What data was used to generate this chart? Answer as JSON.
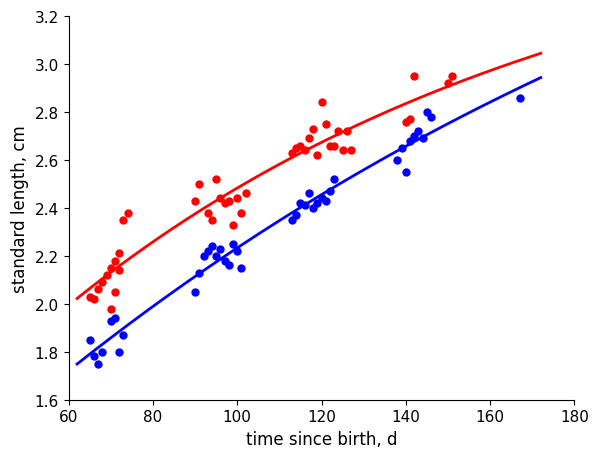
{
  "red_x": [
    65,
    66,
    67,
    68,
    69,
    70,
    70,
    71,
    71,
    72,
    72,
    73,
    74,
    90,
    91,
    93,
    94,
    95,
    96,
    97,
    98,
    99,
    100,
    101,
    102,
    113,
    114,
    115,
    116,
    117,
    118,
    119,
    120,
    121,
    122,
    123,
    124,
    125,
    126,
    127,
    140,
    141,
    142,
    150,
    151
  ],
  "red_y": [
    2.03,
    2.02,
    2.06,
    2.09,
    2.12,
    1.98,
    2.15,
    2.18,
    2.05,
    2.21,
    2.14,
    2.35,
    2.38,
    2.43,
    2.5,
    2.38,
    2.35,
    2.52,
    2.44,
    2.42,
    2.43,
    2.33,
    2.44,
    2.38,
    2.46,
    2.63,
    2.65,
    2.66,
    2.64,
    2.69,
    2.73,
    2.62,
    2.84,
    2.75,
    2.66,
    2.66,
    2.72,
    2.64,
    2.72,
    2.64,
    2.76,
    2.77,
    2.95,
    2.92,
    2.95
  ],
  "blue_x": [
    65,
    66,
    67,
    68,
    70,
    71,
    72,
    73,
    90,
    91,
    92,
    93,
    94,
    95,
    96,
    97,
    98,
    99,
    100,
    101,
    113,
    114,
    115,
    116,
    117,
    118,
    119,
    120,
    121,
    122,
    123,
    138,
    139,
    140,
    141,
    142,
    143,
    144,
    145,
    146,
    167
  ],
  "blue_y": [
    1.85,
    1.78,
    1.75,
    1.8,
    1.93,
    1.94,
    1.8,
    1.87,
    2.05,
    2.13,
    2.2,
    2.22,
    2.24,
    2.2,
    2.23,
    2.18,
    2.16,
    2.25,
    2.22,
    2.15,
    2.35,
    2.37,
    2.42,
    2.41,
    2.46,
    2.4,
    2.42,
    2.44,
    2.43,
    2.47,
    2.52,
    2.6,
    2.65,
    2.55,
    2.68,
    2.7,
    2.72,
    2.69,
    2.8,
    2.78,
    2.86
  ],
  "red_color": "#FF0000",
  "blue_color": "#0000FF",
  "xlim": [
    60,
    180
  ],
  "ylim": [
    1.6,
    3.2
  ],
  "xlabel": "time since birth, d",
  "ylabel": "standard length, cm",
  "xticks": [
    60,
    80,
    100,
    120,
    140,
    160,
    180
  ],
  "yticks": [
    1.6,
    1.8,
    2.0,
    2.2,
    2.4,
    2.6,
    2.8,
    3.0,
    3.2
  ],
  "line_width": 2.0,
  "marker_size": 36,
  "figsize": [
    6.0,
    4.6
  ],
  "dpi": 100
}
